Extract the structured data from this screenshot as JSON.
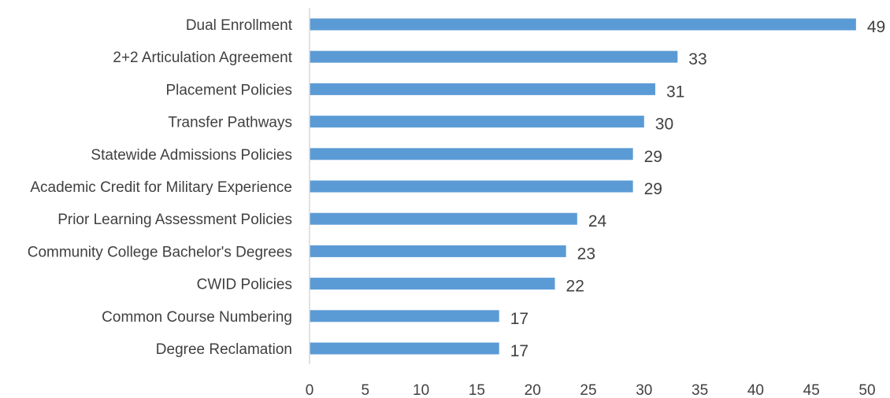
{
  "chart_data": {
    "type": "bar",
    "orientation": "horizontal",
    "categories": [
      "Dual Enrollment",
      "2+2 Articulation Agreement",
      "Placement Policies",
      "Transfer Pathways",
      "Statewide Admissions Policies",
      "Academic Credit for Military Experience",
      "Prior Learning Assessment Policies",
      "Community College Bachelor's Degrees",
      "CWID Policies",
      "Common Course Numbering",
      "Degree Reclamation"
    ],
    "values": [
      49,
      33,
      31,
      30,
      29,
      29,
      24,
      23,
      22,
      17,
      17
    ],
    "xlim": [
      0,
      50
    ],
    "xticks": [
      0,
      5,
      10,
      15,
      20,
      25,
      30,
      35,
      40,
      45,
      50
    ],
    "title": "",
    "xlabel": "",
    "ylabel": "",
    "grid": false,
    "data_labels": true,
    "bar_color": "#5B9BD5",
    "axis_color": "#D9D9D9",
    "text_color": "#404040"
  }
}
